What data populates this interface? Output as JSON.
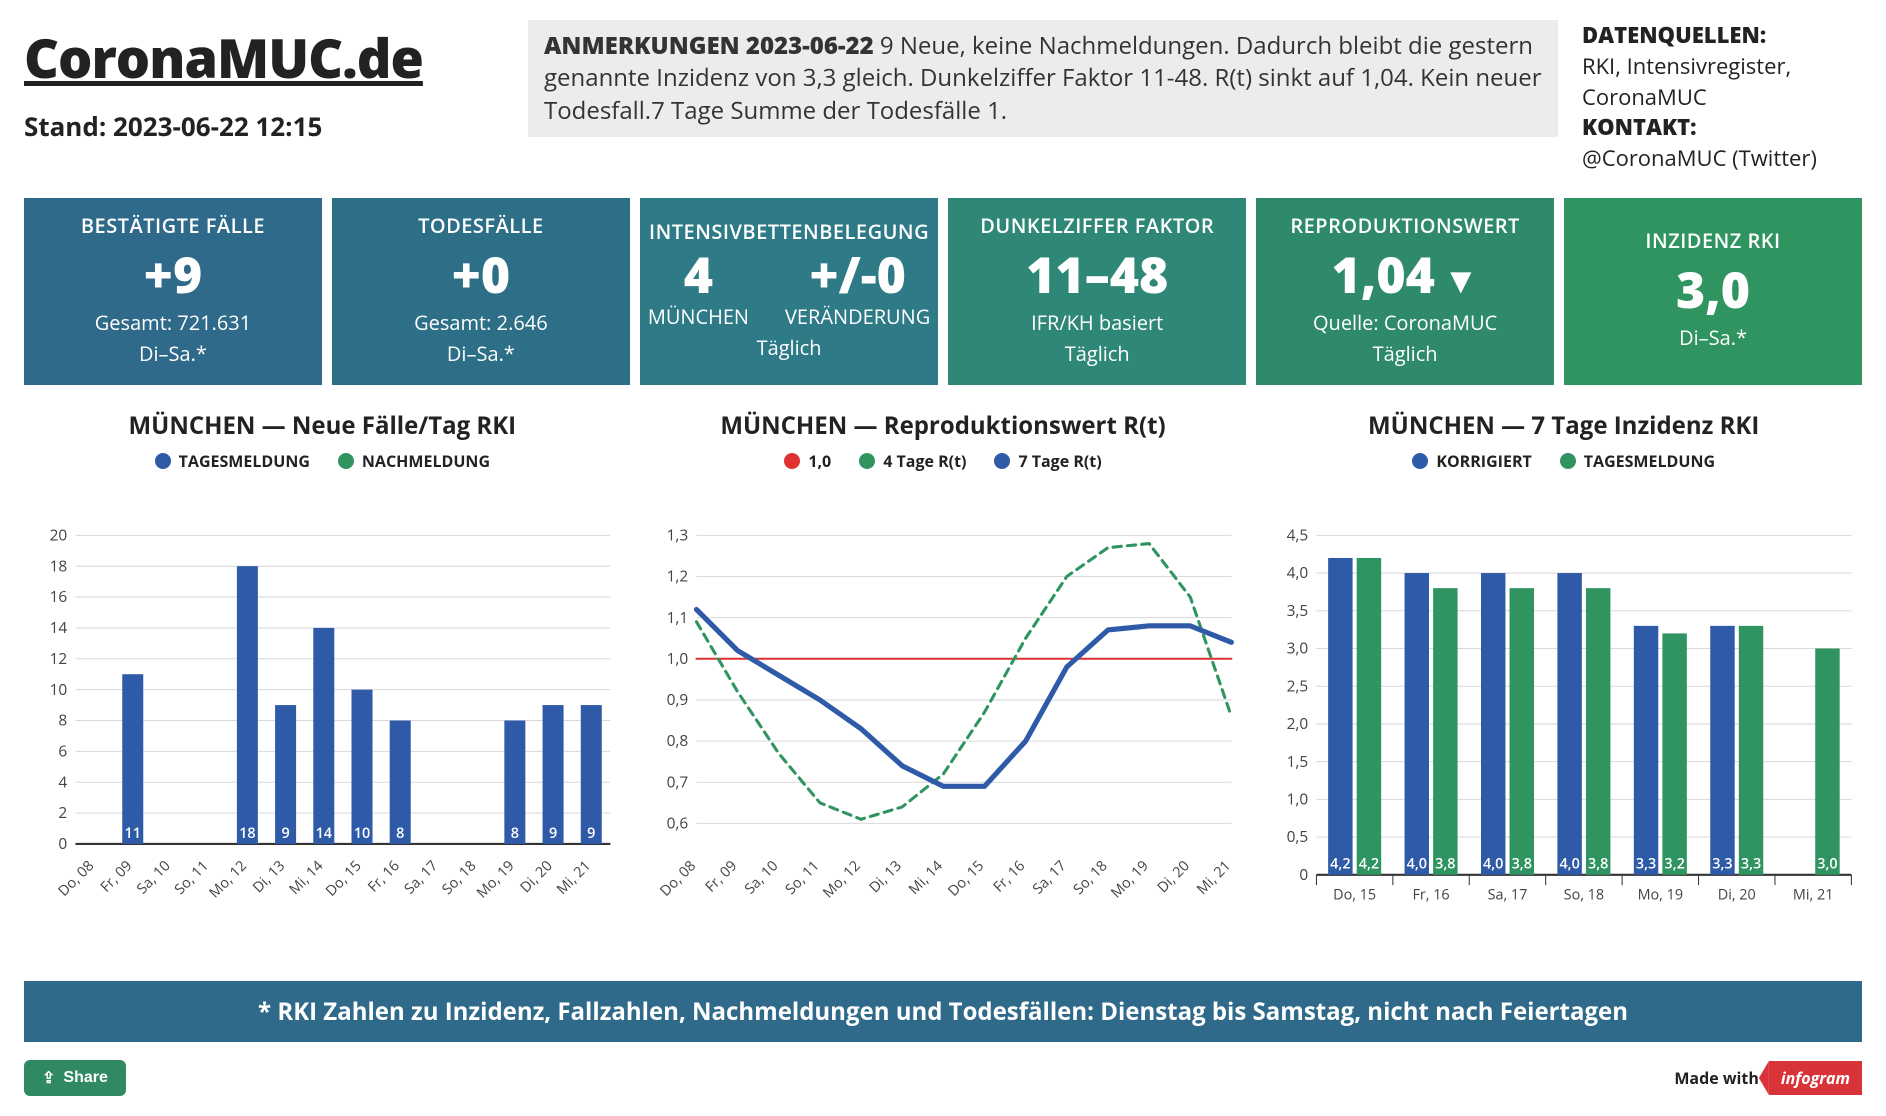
{
  "header": {
    "site_title": "CoronaMUC.de",
    "stand_label": "Stand: 2023-06-22 12:15",
    "note_title": "ANMERKUNGEN 2023-06-22",
    "note_body": " 9 Neue, keine Nachmeldungen. Dadurch bleibt die gestern genannte Inzidenz von 3,3 gleich. Dunkelziffer Faktor 11-48. R(t) sinkt auf 1,04. Kein neuer Todesfall.7 Tage Summe der Todesfälle 1.",
    "sources_label": "DATENQUELLEN:",
    "sources_text": "RKI, Intensivregister, CoronaMUC",
    "contact_label": "KONTAKT:",
    "contact_text": "@CoronaMUC (Twitter)"
  },
  "card_colors": [
    "#2f6a8a",
    "#2e6f88",
    "#2e7a86",
    "#2f8777",
    "#2f8a6a",
    "#2f9460"
  ],
  "cards": [
    {
      "title": "BESTÄTIGTE FÄLLE",
      "big": "+9",
      "sub1": "Gesamt: 721.631",
      "sub2": "Di–Sa.*"
    },
    {
      "title": "TODESFÄLLE",
      "big": "+0",
      "sub1": "Gesamt: 2.646",
      "sub2": "Di–Sa.*"
    },
    {
      "title": "INTENSIVBETTENBELEGUNG",
      "split": [
        {
          "v": "4",
          "l": "MÜNCHEN"
        },
        {
          "v": "+/-0",
          "l": "VERÄNDERUNG"
        }
      ],
      "sub2": "Täglich"
    },
    {
      "title": "DUNKELZIFFER FAKTOR",
      "big": "11–48",
      "sub1": "IFR/KH basiert",
      "sub2": "Täglich"
    },
    {
      "title": "REPRODUKTIONSWERT",
      "big": "1,04",
      "trend": "down",
      "sub1": "Quelle: CoronaMUC",
      "sub2": "Täglich"
    },
    {
      "title": "INZIDENZ RKI",
      "big": "3,0",
      "sub1": "Di–Sa.*",
      "sub2": ""
    }
  ],
  "chart_common": {
    "grid_color": "#d9d9d9",
    "axis_color": "#666",
    "font_axis": 15,
    "blue": "#2f5aa8",
    "green": "#2f9460",
    "red": "#e03030"
  },
  "chart1": {
    "title": "MÜNCHEN — Neue Fälle/Tag RKI",
    "legend": [
      {
        "label": "TAGESMELDUNG",
        "color": "#2f5aa8"
      },
      {
        "label": "NACHMELDUNG",
        "color": "#2f9460"
      }
    ],
    "type": "bar",
    "ylim": [
      0,
      20
    ],
    "ytick_step": 2,
    "categories": [
      "Do, 08",
      "Fr, 09",
      "Sa, 10",
      "So, 11",
      "Mo, 12",
      "Di, 13",
      "Mi, 14",
      "Do, 15",
      "Fr, 16",
      "Sa, 17",
      "So, 18",
      "Mo, 19",
      "Di, 20",
      "Mi, 21"
    ],
    "values": [
      null,
      11,
      null,
      null,
      18,
      9,
      14,
      10,
      8,
      null,
      null,
      8,
      9,
      9
    ],
    "bar_color": "#2f5aa8",
    "value_labels": [
      "",
      "11",
      "",
      "",
      "18",
      "9",
      "14",
      "10",
      "8",
      "",
      "",
      "8",
      "9",
      "9"
    ]
  },
  "chart2": {
    "title": "MÜNCHEN — Reproduktionswert R(t)",
    "legend": [
      {
        "label": "1,0",
        "color": "#e03030"
      },
      {
        "label": "4 Tage R(t)",
        "color": "#2f9460"
      },
      {
        "label": "7 Tage R(t)",
        "color": "#2f5aa8"
      }
    ],
    "type": "line",
    "ylim": [
      0.55,
      1.3
    ],
    "yticks": [
      0.6,
      0.7,
      0.8,
      0.9,
      1.0,
      1.1,
      1.2,
      1.3
    ],
    "ytick_labels": [
      "0,6",
      "0,7",
      "0,8",
      "0,9",
      "1,0",
      "1,1",
      "1,2",
      "1,3"
    ],
    "categories": [
      "Do, 08",
      "Fr, 09",
      "Sa, 10",
      "So, 11",
      "Mo, 12",
      "Di, 13",
      "Mi, 14",
      "Do, 15",
      "Fr, 16",
      "Sa, 17",
      "So, 18",
      "Mo, 19",
      "Di, 20",
      "Mi, 21"
    ],
    "series": {
      "ref_1_0": {
        "color": "#e03030",
        "dash": false,
        "width": 2,
        "values": [
          1,
          1,
          1,
          1,
          1,
          1,
          1,
          1,
          1,
          1,
          1,
          1,
          1,
          1
        ]
      },
      "rt4": {
        "color": "#2f9460",
        "dash": true,
        "width": 3,
        "values": [
          1.09,
          0.92,
          0.77,
          0.65,
          0.61,
          0.64,
          0.72,
          0.87,
          1.05,
          1.2,
          1.27,
          1.28,
          1.15,
          0.86
        ]
      },
      "rt7": {
        "color": "#2f5aa8",
        "dash": false,
        "width": 5,
        "values": [
          1.12,
          1.02,
          0.96,
          0.9,
          0.83,
          0.74,
          0.69,
          0.69,
          0.8,
          0.98,
          1.07,
          1.08,
          1.08,
          1.04
        ]
      }
    }
  },
  "chart3": {
    "title": "MÜNCHEN — 7 Tage Inzidenz RKI",
    "legend": [
      {
        "label": "KORRIGIERT",
        "color": "#2f5aa8"
      },
      {
        "label": "TAGESMELDUNG",
        "color": "#2f9460"
      }
    ],
    "type": "grouped-bar",
    "ylim": [
      0,
      4.5
    ],
    "ytick_step": 0.5,
    "ytick_labels": [
      "0",
      "0,5",
      "1,0",
      "1,5",
      "2,0",
      "2,5",
      "3,0",
      "3,5",
      "4,0",
      "4,5"
    ],
    "categories": [
      "Do, 15",
      "Fr, 16",
      "Sa, 17",
      "So, 18",
      "Mo, 19",
      "Di, 20",
      "Mi, 21"
    ],
    "series": {
      "korrigiert": {
        "color": "#2f5aa8",
        "values": [
          4.2,
          4.0,
          4.0,
          4.0,
          3.3,
          3.3,
          null
        ],
        "labels": [
          "4,2",
          "4,0",
          "4,0",
          "4,0",
          "3,3",
          "3,3",
          ""
        ]
      },
      "tagesmeldung": {
        "color": "#2f9460",
        "values": [
          4.2,
          3.8,
          3.8,
          3.8,
          3.2,
          3.3,
          3.0
        ],
        "labels": [
          "4,2",
          "3,8",
          "3,8",
          "3,8",
          "3,2",
          "3,3",
          "3,0"
        ]
      }
    }
  },
  "footnote": {
    "text": "* RKI Zahlen zu Inzidenz, Fallzahlen, Nachmeldungen und Todesfällen: Dienstag bis Samstag, nicht nach Feiertagen",
    "bg_color": "#2f6a8a"
  },
  "bottom": {
    "share_label": "Share",
    "madewith_label": "Made with",
    "badge": "infogram"
  }
}
